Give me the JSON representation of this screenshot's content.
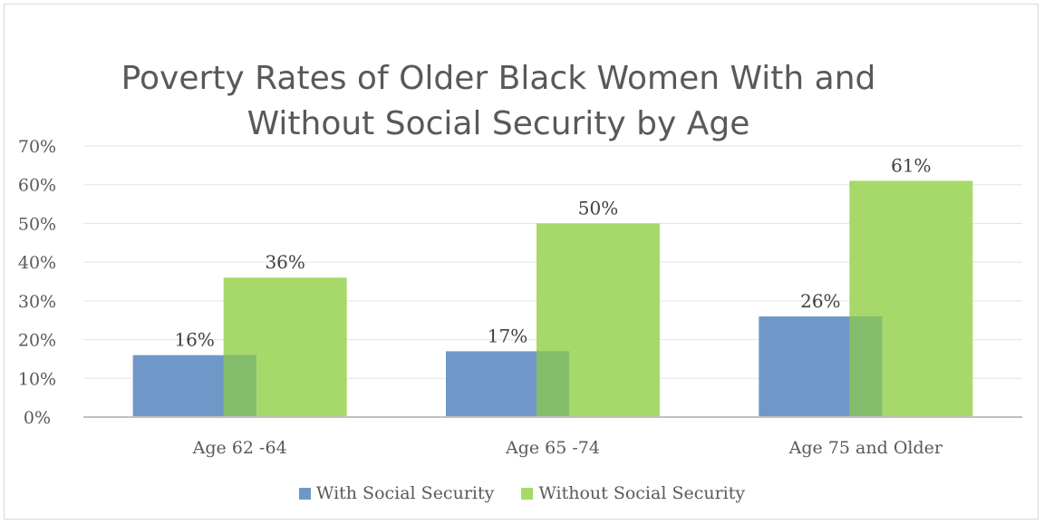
{
  "chart_data": {
    "type": "bar",
    "title_lines": [
      "Poverty Rates of Older Black Women With and",
      "Without Social Security by Age"
    ],
    "categories": [
      "Age 62 -64",
      "Age 65 -74",
      "Age 75 and Older"
    ],
    "series": [
      {
        "name": "With Social Security",
        "values": [
          16,
          17,
          26
        ],
        "labels": [
          "16%",
          "17%",
          "26%"
        ],
        "color": "#6f98c8"
      },
      {
        "name": "Without Social Security",
        "values": [
          36,
          50,
          61
        ],
        "labels": [
          "36%",
          "50%",
          "61%"
        ],
        "color": "#a6d96a"
      }
    ],
    "overlap_color": "#84be6c",
    "ylim": [
      0,
      70
    ],
    "yticks": [
      0,
      10,
      20,
      30,
      40,
      50,
      60,
      70
    ],
    "ytick_labels": [
      "0%",
      "10%",
      "20%",
      "30%",
      "40%",
      "50%",
      "60%",
      "70%"
    ],
    "grid": true,
    "legend_position": "bottom"
  }
}
